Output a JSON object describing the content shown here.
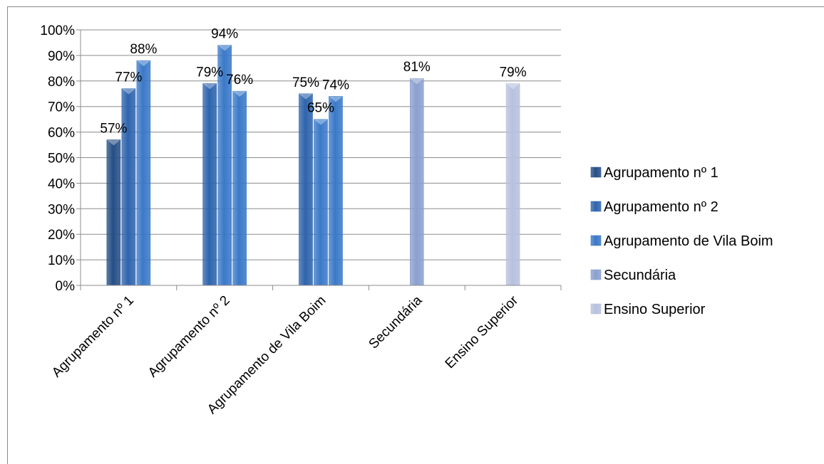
{
  "chart_data": {
    "type": "bar",
    "title": "",
    "xlabel": "",
    "ylabel": "",
    "ylim": [
      0,
      1
    ],
    "y_ticks": [
      "0%",
      "10%",
      "20%",
      "30%",
      "40%",
      "50%",
      "60%",
      "70%",
      "80%",
      "90%",
      "100%"
    ],
    "grid": true,
    "legend_position": "right",
    "categories": [
      "Agrupamento nº 1",
      "Agrupamento nº 2",
      "Agrupamento de Vila Boim",
      "Secundária",
      "Ensino Superior"
    ],
    "bars": [
      {
        "category": "Agrupamento nº 1",
        "value": 0.57,
        "label": "57%",
        "colorKey": "c1"
      },
      {
        "category": "Agrupamento nº 1",
        "value": 0.77,
        "label": "77%",
        "colorKey": "c2"
      },
      {
        "category": "Agrupamento nº 1",
        "value": 0.88,
        "label": "88%",
        "colorKey": "c3"
      },
      {
        "category": "Agrupamento nº 2",
        "value": 0.79,
        "label": "79%",
        "colorKey": "c2"
      },
      {
        "category": "Agrupamento nº 2",
        "value": 0.94,
        "label": "94%",
        "colorKey": "c3"
      },
      {
        "category": "Agrupamento nº 2",
        "value": 0.76,
        "label": "76%",
        "colorKey": "c3"
      },
      {
        "category": "Agrupamento de Vila Boim",
        "value": 0.75,
        "label": "75%",
        "colorKey": "c2"
      },
      {
        "category": "Agrupamento de Vila Boim",
        "value": 0.65,
        "label": "65%",
        "colorKey": "c3"
      },
      {
        "category": "Agrupamento de Vila Boim",
        "value": 0.74,
        "label": "74%",
        "colorKey": "c3"
      },
      {
        "category": "Secundária",
        "value": 0.81,
        "label": "81%",
        "colorKey": "c4"
      },
      {
        "category": "Ensino Superior",
        "value": 0.79,
        "label": "79%",
        "colorKey": "c5"
      }
    ],
    "legend": [
      {
        "name": "Agrupamento nº 1",
        "colorKey": "c1"
      },
      {
        "name": "Agrupamento nº 2",
        "colorKey": "c2"
      },
      {
        "name": "Agrupamento de Vila Boim",
        "colorKey": "c3"
      },
      {
        "name": "Secundária",
        "colorKey": "c4"
      },
      {
        "name": "Ensino Superior",
        "colorKey": "c5"
      }
    ],
    "colors": {
      "c1": "#264f87",
      "c2": "#2e64ad",
      "c3": "#3a79c8",
      "c4": "#8ba0cf",
      "c5": "#b7c1de"
    },
    "gridline_color": "#8c8c8c",
    "axis_color": "#8c8c8c"
  }
}
